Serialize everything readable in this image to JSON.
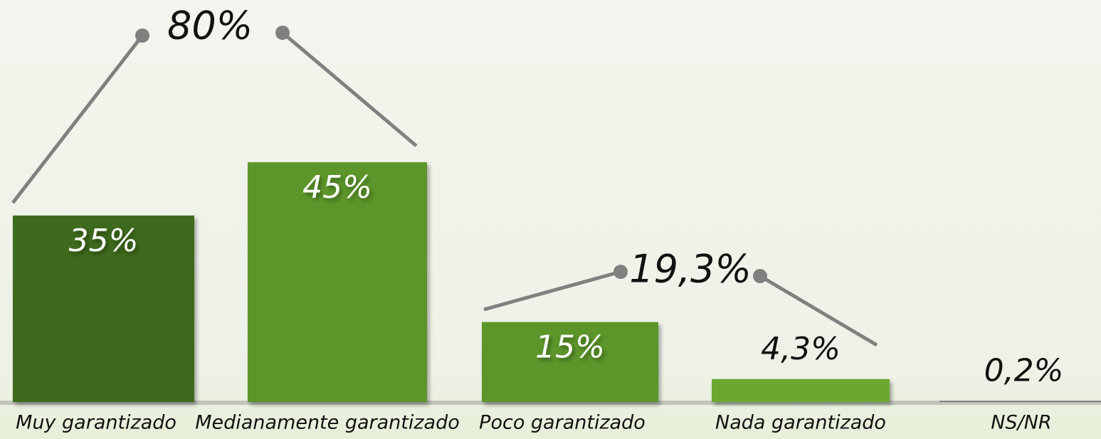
{
  "chart_data": {
    "type": "bar",
    "categories": [
      "Muy garantizado",
      "Medianamente garantizado",
      "Poco garantizado",
      "Nada garantizado",
      "NS/NR"
    ],
    "values": [
      35,
      45,
      15,
      4.3,
      0.2
    ],
    "value_labels": [
      "35%",
      "45%",
      "15%",
      "4,3%",
      "0,2%"
    ],
    "colors": [
      "#3e6a1e",
      "#5c962a",
      "#5c962a",
      "#6aa832",
      "#707070"
    ],
    "annotations": [
      "80%",
      "19,3%"
    ]
  }
}
